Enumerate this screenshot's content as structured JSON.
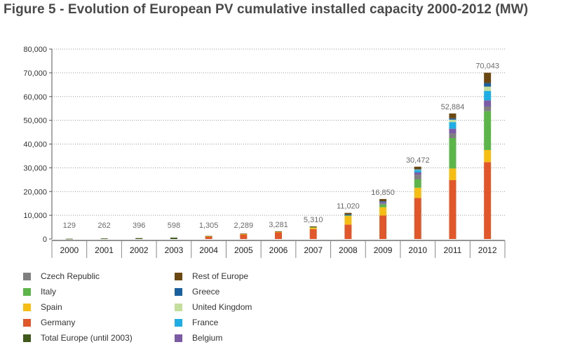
{
  "title": "Figure 5 - Evolution of European PV cumulative installed capacity 2000-2012 (MW)",
  "chart_data": {
    "type": "bar",
    "stacked": true,
    "title": "Figure 5 - Evolution of European PV cumulative installed capacity 2000-2012 (MW)",
    "xlabel": "",
    "ylabel": "",
    "ylim": [
      0,
      80000
    ],
    "yticks": [
      0,
      10000,
      20000,
      30000,
      40000,
      50000,
      60000,
      70000,
      80000
    ],
    "ytick_labels": [
      "0",
      "10,000",
      "20,000",
      "30,000",
      "40,000",
      "50,000",
      "60,000",
      "70,000",
      "80,000"
    ],
    "categories": [
      "2000",
      "2001",
      "2002",
      "2003",
      "2004",
      "2005",
      "2006",
      "2007",
      "2008",
      "2009",
      "2010",
      "2011",
      "2012"
    ],
    "totals": [
      129,
      262,
      396,
      598,
      1305,
      2289,
      3281,
      5310,
      11020,
      16850,
      30472,
      52884,
      70043
    ],
    "total_labels": [
      "129",
      "262",
      "396",
      "598",
      "1,305",
      "2,289",
      "3,281",
      "5,310",
      "11,020",
      "16,850",
      "30,472",
      "52,884",
      "70,043"
    ],
    "series": [
      {
        "name": "Total Europe (until 2003)",
        "color": "#3f5a1a",
        "values": [
          129,
          262,
          396,
          598,
          0,
          0,
          0,
          0,
          0,
          0,
          0,
          0,
          0
        ]
      },
      {
        "name": "Germany",
        "color": "#e2572a",
        "values": [
          0,
          0,
          0,
          0,
          1100,
          2000,
          2900,
          4200,
          6100,
          9900,
          17300,
          24800,
          32400
        ]
      },
      {
        "name": "Spain",
        "color": "#f6be12",
        "values": [
          0,
          0,
          0,
          0,
          20,
          50,
          150,
          700,
          3600,
          3500,
          4300,
          4900,
          5100
        ]
      },
      {
        "name": "Italy",
        "color": "#5cb548",
        "values": [
          0,
          0,
          0,
          0,
          0,
          0,
          0,
          100,
          450,
          1150,
          3500,
          12800,
          16300
        ]
      },
      {
        "name": "Czech Republic",
        "color": "#7f7f7f",
        "values": [
          0,
          0,
          0,
          0,
          0,
          0,
          0,
          0,
          50,
          450,
          1950,
          1950,
          2000
        ]
      },
      {
        "name": "Belgium",
        "color": "#7b5aa6",
        "values": [
          0,
          0,
          0,
          0,
          0,
          0,
          0,
          0,
          70,
          580,
          1000,
          2000,
          2600
        ]
      },
      {
        "name": "France",
        "color": "#1eaee4",
        "values": [
          0,
          0,
          0,
          0,
          0,
          0,
          0,
          0,
          80,
          250,
          1100,
          2800,
          4000
        ]
      },
      {
        "name": "United Kingdom",
        "color": "#c4df9b",
        "values": [
          0,
          0,
          0,
          0,
          0,
          0,
          0,
          0,
          0,
          0,
          100,
          1000,
          1800
        ]
      },
      {
        "name": "Greece",
        "color": "#1a5f9e",
        "values": [
          0,
          0,
          0,
          0,
          0,
          0,
          0,
          0,
          20,
          50,
          200,
          600,
          1500
        ]
      },
      {
        "name": "Rest of Europe",
        "color": "#6b4712",
        "values": [
          0,
          0,
          0,
          0,
          185,
          239,
          231,
          310,
          650,
          970,
          1022,
          2034,
          4343
        ]
      }
    ],
    "legend_position": "bottom-left",
    "grid": "horizontal dotted"
  },
  "legend": {
    "column1": [
      {
        "label": "Czech Republic",
        "color": "#7f7f7f"
      },
      {
        "label": "Italy",
        "color": "#5cb548"
      },
      {
        "label": "Spain",
        "color": "#f6be12"
      },
      {
        "label": "Germany",
        "color": "#e2572a"
      },
      {
        "label": "Total Europe (until 2003)",
        "color": "#3f5a1a"
      }
    ],
    "column2": [
      {
        "label": "Rest of Europe",
        "color": "#6b4712"
      },
      {
        "label": "Greece",
        "color": "#1a5f9e"
      },
      {
        "label": "United Kingdom",
        "color": "#c4df9b"
      },
      {
        "label": "France",
        "color": "#1eaee4"
      },
      {
        "label": "Belgium",
        "color": "#7b5aa6"
      }
    ]
  }
}
